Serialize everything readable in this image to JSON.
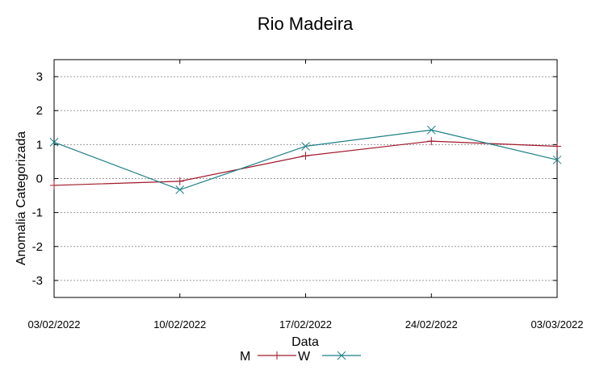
{
  "chart_data": {
    "type": "line",
    "title": "Rio Madeira",
    "xlabel": "Data",
    "ylabel": "Anomalia Categorizada",
    "categories": [
      "03/02/2022",
      "10/02/2022",
      "17/02/2022",
      "24/02/2022",
      "03/03/2022"
    ],
    "ylim": [
      -3.5,
      3.5
    ],
    "yticks": [
      3,
      2,
      1,
      0,
      -1,
      -2,
      -3
    ],
    "grid": true,
    "legend_position": "bottom",
    "series": [
      {
        "name": "M",
        "color": "#a0182a",
        "marker": "plus",
        "values": [
          -0.2,
          -0.08,
          0.67,
          1.1,
          0.95
        ]
      },
      {
        "name": "W",
        "color": "#1a7f86",
        "marker": "cross",
        "values": [
          1.07,
          -0.33,
          0.95,
          1.43,
          0.55
        ]
      }
    ]
  }
}
